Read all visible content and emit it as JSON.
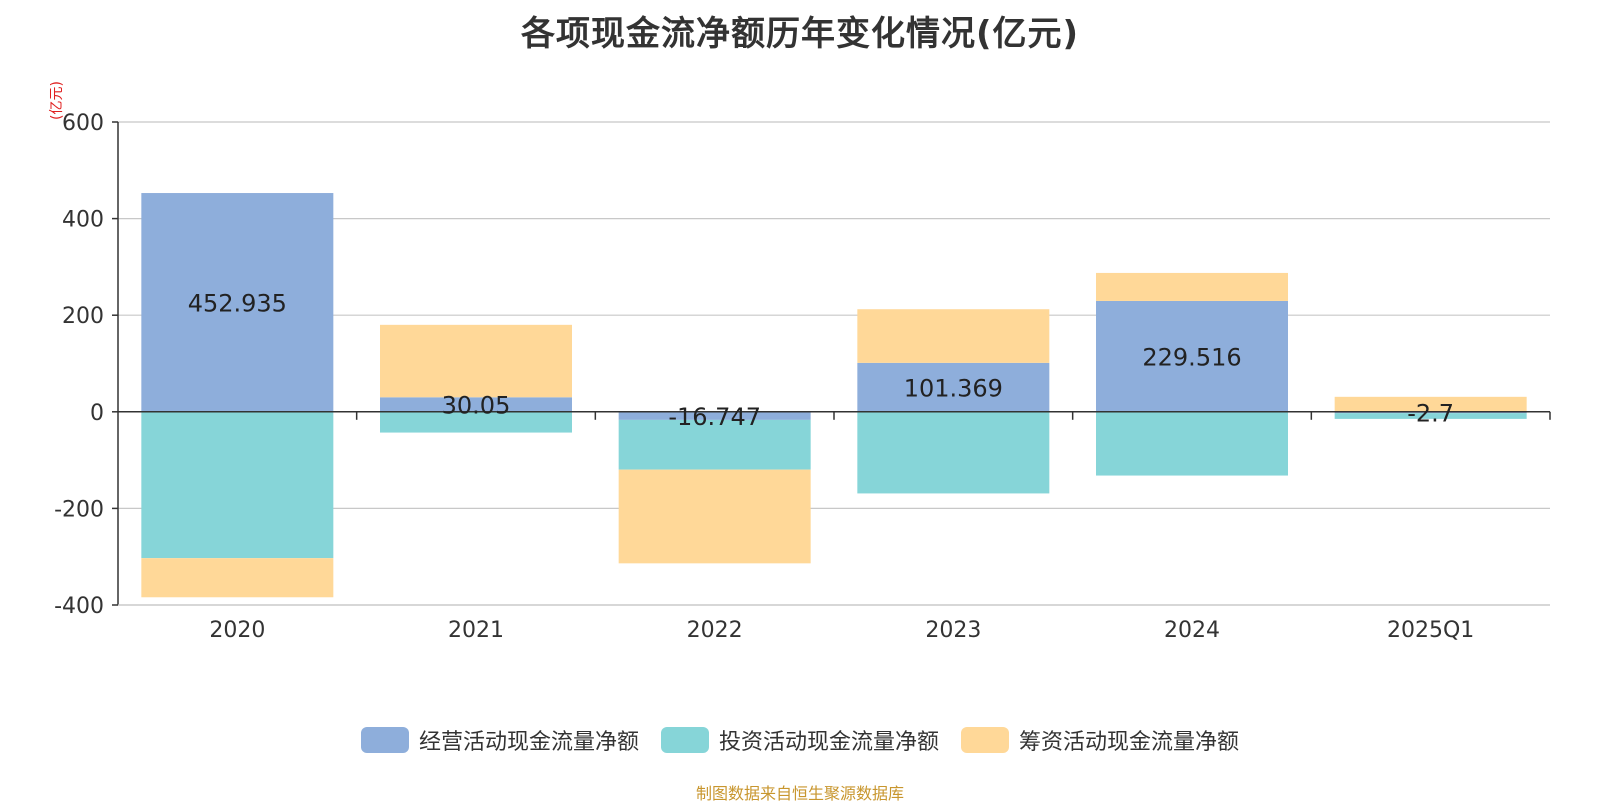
{
  "chart_data": {
    "type": "bar",
    "stacked": true,
    "title": "各项现金流净额历年变化情况(亿元)",
    "unit_label": "(亿元)",
    "categories": [
      "2020",
      "2021",
      "2022",
      "2023",
      "2024",
      "2025Q1"
    ],
    "ylim": [
      -400,
      600
    ],
    "yticks": [
      -400,
      -200,
      0,
      200,
      400,
      600
    ],
    "series": [
      {
        "name": "经营活动现金流量净额",
        "color": "#8eaedb",
        "values": [
          452.935,
          30.05,
          -16.747,
          101.369,
          229.516,
          -2.7
        ],
        "labels": [
          "452.935",
          "30.05",
          "-16.747",
          "101.369",
          "229.516",
          "-2.7"
        ]
      },
      {
        "name": "投资活动现金流量净额",
        "color": "#86d5d8",
        "values": [
          -303,
          -43,
          -103,
          -169,
          -132,
          -12
        ],
        "labels": []
      },
      {
        "name": "筹资活动现金流量净额",
        "color": "#ffd898",
        "values": [
          -81,
          150,
          -194,
          111,
          58,
          31
        ],
        "labels": []
      }
    ],
    "source": "制图数据来自恒生聚源数据库"
  }
}
